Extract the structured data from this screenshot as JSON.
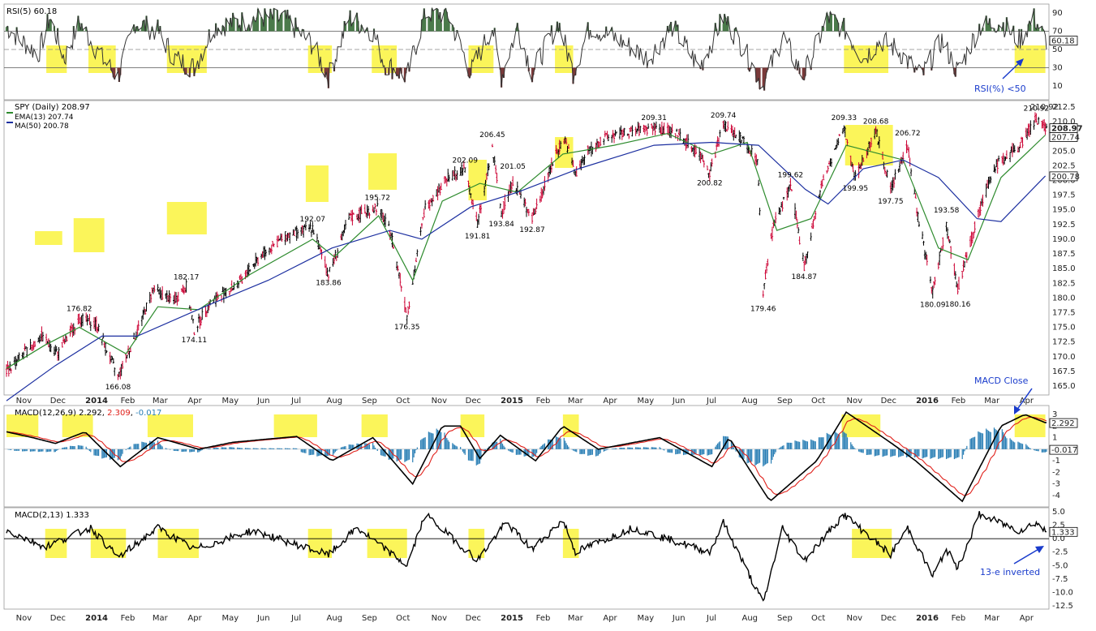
{
  "colors": {
    "highlight": "#fbf55a",
    "rsi_line": "#333333",
    "rsi_overbought_fill": "#4a7a4a",
    "rsi_oversold_fill": "#7a3a3a",
    "price_up": "#000000",
    "price_down": "#cc0033",
    "ema": "#2e8b2e",
    "ma": "#1c2fa0",
    "macd_line": "#000000",
    "macd_signal": "#e0201a",
    "histogram": "#2a7fb5",
    "annotation": "#1a3ccc"
  },
  "panels": {
    "rsi": {
      "legend": "RSI(5) 60.18",
      "ticks": [
        "90",
        "70",
        "50",
        "30",
        "10"
      ],
      "last_value_label": "60.18",
      "annotation": "RSI(%) <50"
    },
    "price": {
      "legend_symbol": "SPY (Daily) 208.97",
      "legend_ema": "EMA(13) 207.74",
      "legend_ma": "MA(50) 200.78",
      "ticks": [
        "212.5",
        "210.0",
        "207.5",
        "205.0",
        "202.5",
        "200.0",
        "197.5",
        "195.0",
        "192.5",
        "190.0",
        "187.5",
        "185.0",
        "182.5",
        "180.0",
        "177.5",
        "175.0",
        "172.5",
        "170.0",
        "167.5",
        "165.0"
      ],
      "last_price_label": "208.97",
      "last_ema_label": "207.74",
      "last_ma_label": "200.78",
      "top_label": "210.92"
    },
    "macd": {
      "legend_main": "MACD(12,26,9)",
      "legend_v1": "2.292",
      "legend_v2": "2.309",
      "legend_v3": "-0.017",
      "ticks": [
        "3",
        "2",
        "1",
        "0",
        "-1",
        "-2",
        "-3",
        "-4"
      ],
      "last_macd_label": "2.292",
      "last_hist_label": "-0.017",
      "annotation": "MACD Close"
    },
    "macd2": {
      "legend": "MACD(2,13) 1.333",
      "ticks": [
        "5.0",
        "2.5",
        "0.0",
        "-2.5",
        "-5.0",
        "-7.5",
        "-10.0",
        "-12.5"
      ],
      "last_label": "1.333",
      "annotation": "13-e inverted"
    }
  },
  "x_axis_labels": [
    "Nov",
    "Dec",
    "2014",
    "Feb",
    "Mar",
    "Apr",
    "May",
    "Jun",
    "Jul",
    "Aug",
    "Sep",
    "Oct",
    "Nov",
    "Dec",
    "2015",
    "Feb",
    "Mar",
    "Apr",
    "May",
    "Jun",
    "Jul",
    "Aug",
    "Sep",
    "Oct",
    "Nov",
    "Dec",
    "2016",
    "Feb",
    "Mar",
    "Apr"
  ],
  "chart_data": {
    "type": "candlestick",
    "title": "SPY (Daily)",
    "ylim": [
      163,
      213
    ],
    "price_labels": [
      {
        "date": "2013-12-31",
        "value": "176.82"
      },
      {
        "date": "2014-02-03",
        "value": "166.08"
      },
      {
        "date": "2014-04-04",
        "value": "182.17"
      },
      {
        "date": "2014-04-11",
        "value": "174.11"
      },
      {
        "date": "2014-07-24",
        "value": "192.07"
      },
      {
        "date": "2014-08-07",
        "value": "183.86"
      },
      {
        "date": "2014-09-19",
        "value": "195.72"
      },
      {
        "date": "2014-10-15",
        "value": "176.35"
      },
      {
        "date": "2014-12-05",
        "value": "202.09"
      },
      {
        "date": "2014-12-16",
        "value": "191.81"
      },
      {
        "date": "2014-12-29",
        "value": "206.45"
      },
      {
        "date": "2015-01-06",
        "value": "193.84"
      },
      {
        "date": "2015-01-16",
        "value": "201.05"
      },
      {
        "date": "2015-02-02",
        "value": "192.87"
      },
      {
        "date": "2015-05-20",
        "value": "209.31"
      },
      {
        "date": "2015-07-08",
        "value": "200.82"
      },
      {
        "date": "2015-07-20",
        "value": "209.74"
      },
      {
        "date": "2015-08-24",
        "value": "179.46"
      },
      {
        "date": "2015-09-17",
        "value": "199.62"
      },
      {
        "date": "2015-09-29",
        "value": "184.87"
      },
      {
        "date": "2015-11-03",
        "value": "209.33"
      },
      {
        "date": "2015-11-13",
        "value": "199.95"
      },
      {
        "date": "2015-12-01",
        "value": "208.68"
      },
      {
        "date": "2015-12-14",
        "value": "197.75"
      },
      {
        "date": "2015-12-29",
        "value": "206.72"
      },
      {
        "date": "2016-01-20",
        "value": "180.09"
      },
      {
        "date": "2016-02-01",
        "value": "193.58"
      },
      {
        "date": "2016-02-11",
        "value": "180.16"
      },
      {
        "date": "2016-04-20",
        "value": "210.92"
      }
    ],
    "price_path": [
      [
        "2013-10-28",
        167.5
      ],
      [
        "2013-11-12",
        170.5
      ],
      [
        "2013-11-28",
        173.5
      ],
      [
        "2013-12-12",
        170.5
      ],
      [
        "2013-12-31",
        176.5
      ],
      [
        "2014-01-15",
        175.5
      ],
      [
        "2014-02-03",
        166.5
      ],
      [
        "2014-02-20",
        174.5
      ],
      [
        "2014-03-06",
        181.5
      ],
      [
        "2014-03-24",
        179.5
      ],
      [
        "2014-04-04",
        182.0
      ],
      [
        "2014-04-11",
        174.5
      ],
      [
        "2014-04-24",
        179.0
      ],
      [
        "2014-05-20",
        182.5
      ],
      [
        "2014-06-10",
        187.5
      ],
      [
        "2014-06-30",
        190.5
      ],
      [
        "2014-07-24",
        192.0
      ],
      [
        "2014-08-07",
        184.0
      ],
      [
        "2014-08-25",
        193.5
      ],
      [
        "2014-09-19",
        195.5
      ],
      [
        "2014-10-01",
        191.0
      ],
      [
        "2014-10-15",
        177.0
      ],
      [
        "2014-10-31",
        195.5
      ],
      [
        "2014-11-20",
        200.5
      ],
      [
        "2014-12-05",
        202.0
      ],
      [
        "2014-12-16",
        192.5
      ],
      [
        "2014-12-29",
        205.5
      ],
      [
        "2015-01-06",
        194.5
      ],
      [
        "2015-01-16",
        200.0
      ],
      [
        "2015-02-02",
        193.5
      ],
      [
        "2015-02-25",
        205.5
      ],
      [
        "2015-03-03",
        207.0
      ],
      [
        "2015-03-12",
        201.0
      ],
      [
        "2015-03-23",
        205.0
      ],
      [
        "2015-04-10",
        207.5
      ],
      [
        "2015-05-20",
        209.0
      ],
      [
        "2015-06-10",
        208.0
      ],
      [
        "2015-06-29",
        204.5
      ],
      [
        "2015-07-08",
        201.5
      ],
      [
        "2015-07-20",
        209.5
      ],
      [
        "2015-08-06",
        207.0
      ],
      [
        "2015-08-19",
        203.5
      ],
      [
        "2015-08-24",
        181.0
      ],
      [
        "2015-09-02",
        192.5
      ],
      [
        "2015-09-17",
        199.0
      ],
      [
        "2015-09-29",
        185.5
      ],
      [
        "2015-10-15",
        199.5
      ],
      [
        "2015-11-03",
        209.0
      ],
      [
        "2015-11-13",
        200.5
      ],
      [
        "2015-12-01",
        208.5
      ],
      [
        "2015-12-14",
        198.5
      ],
      [
        "2015-12-29",
        206.0
      ],
      [
        "2016-01-07",
        194.0
      ],
      [
        "2016-01-20",
        181.0
      ],
      [
        "2016-02-01",
        192.5
      ],
      [
        "2016-02-11",
        181.5
      ],
      [
        "2016-02-29",
        194.5
      ],
      [
        "2016-03-15",
        202.5
      ],
      [
        "2016-04-04",
        205.5
      ],
      [
        "2016-04-20",
        210.5
      ],
      [
        "2016-04-28",
        208.97
      ]
    ],
    "ema13_path": [
      [
        "2013-10-28",
        168.0
      ],
      [
        "2013-12-01",
        172.0
      ],
      [
        "2013-12-31",
        175.0
      ],
      [
        "2014-02-10",
        170.5
      ],
      [
        "2014-03-10",
        178.5
      ],
      [
        "2014-04-15",
        178.0
      ],
      [
        "2014-05-30",
        184.0
      ],
      [
        "2014-07-24",
        190.0
      ],
      [
        "2014-08-12",
        187.0
      ],
      [
        "2014-09-20",
        194.0
      ],
      [
        "2014-10-20",
        183.0
      ],
      [
        "2014-11-15",
        196.5
      ],
      [
        "2014-12-18",
        199.5
      ],
      [
        "2015-01-20",
        198.0
      ],
      [
        "2015-03-01",
        204.5
      ],
      [
        "2015-04-15",
        206.0
      ],
      [
        "2015-06-01",
        208.0
      ],
      [
        "2015-07-10",
        204.5
      ],
      [
        "2015-08-10",
        206.5
      ],
      [
        "2015-09-05",
        191.5
      ],
      [
        "2015-10-05",
        193.5
      ],
      [
        "2015-11-05",
        206.0
      ],
      [
        "2015-12-25",
        203.5
      ],
      [
        "2016-01-25",
        188.5
      ],
      [
        "2016-02-20",
        186.5
      ],
      [
        "2016-03-20",
        200.5
      ],
      [
        "2016-04-28",
        207.74
      ]
    ],
    "ma50_path": [
      [
        "2013-10-28",
        162.5
      ],
      [
        "2013-12-10",
        168.5
      ],
      [
        "2014-01-20",
        173.5
      ],
      [
        "2014-02-20",
        173.5
      ],
      [
        "2014-04-20",
        178.5
      ],
      [
        "2014-06-15",
        183.0
      ],
      [
        "2014-08-10",
        188.5
      ],
      [
        "2014-09-30",
        191.5
      ],
      [
        "2014-10-28",
        190.0
      ],
      [
        "2014-12-10",
        195.5
      ],
      [
        "2015-01-20",
        198.0
      ],
      [
        "2015-03-15",
        202.0
      ],
      [
        "2015-05-20",
        206.0
      ],
      [
        "2015-07-10",
        206.5
      ],
      [
        "2015-08-20",
        206.0
      ],
      [
        "2015-09-30",
        198.5
      ],
      [
        "2015-10-20",
        196.0
      ],
      [
        "2015-11-20",
        202.0
      ],
      [
        "2015-12-25",
        203.5
      ],
      [
        "2016-01-25",
        200.5
      ],
      [
        "2016-02-28",
        193.5
      ],
      [
        "2016-03-20",
        193.0
      ],
      [
        "2016-04-28",
        200.78
      ]
    ],
    "rsi_path": [
      [
        "2013-10-28",
        75
      ],
      [
        "2013-11-10",
        60
      ],
      [
        "2013-11-25",
        45
      ],
      [
        "2013-12-05",
        85
      ],
      [
        "2013-12-18",
        40
      ],
      [
        "2013-12-31",
        80
      ],
      [
        "2014-01-20",
        40
      ],
      [
        "2014-02-03",
        20
      ],
      [
        "2014-02-18",
        80
      ],
      [
        "2014-03-10",
        70
      ],
      [
        "2014-03-25",
        40
      ],
      [
        "2014-04-11",
        30
      ],
      [
        "2014-04-28",
        75
      ],
      [
        "2014-05-20",
        80
      ],
      [
        "2014-06-10",
        85
      ],
      [
        "2014-07-01",
        82
      ],
      [
        "2014-07-24",
        55
      ],
      [
        "2014-08-07",
        20
      ],
      [
        "2014-08-25",
        85
      ],
      [
        "2014-09-15",
        70
      ],
      [
        "2014-09-25",
        35
      ],
      [
        "2014-10-15",
        20
      ],
      [
        "2014-10-31",
        90
      ],
      [
        "2014-11-20",
        88
      ],
      [
        "2014-12-10",
        25
      ],
      [
        "2014-12-29",
        75
      ],
      [
        "2015-01-06",
        20
      ],
      [
        "2015-01-20",
        75
      ],
      [
        "2015-02-02",
        25
      ],
      [
        "2015-02-25",
        80
      ],
      [
        "2015-03-10",
        25
      ],
      [
        "2015-03-25",
        75
      ],
      [
        "2015-04-20",
        60
      ],
      [
        "2015-05-15",
        40
      ],
      [
        "2015-06-05",
        75
      ],
      [
        "2015-06-29",
        30
      ],
      [
        "2015-07-20",
        85
      ],
      [
        "2015-08-05",
        55
      ],
      [
        "2015-08-24",
        10
      ],
      [
        "2015-09-10",
        65
      ],
      [
        "2015-09-28",
        20
      ],
      [
        "2015-10-20",
        85
      ],
      [
        "2015-11-05",
        70
      ],
      [
        "2015-11-20",
        40
      ],
      [
        "2015-12-05",
        60
      ],
      [
        "2015-12-20",
        50
      ],
      [
        "2016-01-10",
        20
      ],
      [
        "2016-01-28",
        60
      ],
      [
        "2016-02-11",
        25
      ],
      [
        "2016-03-01",
        75
      ],
      [
        "2016-03-20",
        80
      ],
      [
        "2016-04-05",
        60
      ],
      [
        "2016-04-18",
        85
      ],
      [
        "2016-04-28",
        60.18
      ]
    ],
    "macd_path": [
      [
        "2013-10-28",
        1.5
      ],
      [
        "2013-11-20",
        1.0
      ],
      [
        "2013-12-10",
        0.5
      ],
      [
        "2014-01-05",
        1.5
      ],
      [
        "2014-02-05",
        -1.5
      ],
      [
        "2014-03-10",
        1.0
      ],
      [
        "2014-04-15",
        0.0
      ],
      [
        "2014-05-15",
        0.6
      ],
      [
        "2014-07-10",
        1.1
      ],
      [
        "2014-08-10",
        -1.0
      ],
      [
        "2014-09-15",
        1.0
      ],
      [
        "2014-10-20",
        -3.0
      ],
      [
        "2014-11-15",
        2.0
      ],
      [
        "2014-12-01",
        2.0
      ],
      [
        "2014-12-18",
        -0.8
      ],
      [
        "2015-01-05",
        1.2
      ],
      [
        "2015-02-05",
        -1.0
      ],
      [
        "2015-03-01",
        2.0
      ],
      [
        "2015-04-01",
        0.0
      ],
      [
        "2015-05-25",
        1.0
      ],
      [
        "2015-07-10",
        -1.5
      ],
      [
        "2015-07-25",
        1.0
      ],
      [
        "2015-08-30",
        -4.5
      ],
      [
        "2015-10-10",
        -1.0
      ],
      [
        "2015-11-05",
        3.2
      ],
      [
        "2015-12-15",
        0.5
      ],
      [
        "2016-01-05",
        -1.0
      ],
      [
        "2016-02-15",
        -4.5
      ],
      [
        "2016-03-20",
        2.0
      ],
      [
        "2016-04-10",
        3.0
      ],
      [
        "2016-04-28",
        2.292
      ]
    ],
    "macd2_path": [
      [
        "2013-10-28",
        1.5
      ],
      [
        "2013-12-01",
        -1.5
      ],
      [
        "2014-01-10",
        2.0
      ],
      [
        "2014-02-03",
        -3.5
      ],
      [
        "2014-03-10",
        2.0
      ],
      [
        "2014-04-11",
        -2.0
      ],
      [
        "2014-06-01",
        1.5
      ],
      [
        "2014-08-07",
        -3.0
      ],
      [
        "2014-09-01",
        2.0
      ],
      [
        "2014-10-15",
        -5.0
      ],
      [
        "2014-10-31",
        4.5
      ],
      [
        "2014-12-16",
        -4.0
      ],
      [
        "2015-01-10",
        3.0
      ],
      [
        "2015-02-02",
        -2.0
      ],
      [
        "2015-03-01",
        3.5
      ],
      [
        "2015-03-12",
        -2.5
      ],
      [
        "2015-05-01",
        2.0
      ],
      [
        "2015-07-08",
        -2.5
      ],
      [
        "2015-07-20",
        3.0
      ],
      [
        "2015-08-24",
        -12.0
      ],
      [
        "2015-09-10",
        2.0
      ],
      [
        "2015-09-29",
        -4.0
      ],
      [
        "2015-11-03",
        4.5
      ],
      [
        "2015-12-14",
        -3.0
      ],
      [
        "2015-12-29",
        2.0
      ],
      [
        "2016-01-20",
        -7.0
      ],
      [
        "2016-02-01",
        -2.0
      ],
      [
        "2016-02-11",
        -5.5
      ],
      [
        "2016-03-01",
        4.5
      ],
      [
        "2016-04-05",
        1.5
      ],
      [
        "2016-04-20",
        3.0
      ],
      [
        "2016-04-28",
        1.333
      ]
    ]
  }
}
